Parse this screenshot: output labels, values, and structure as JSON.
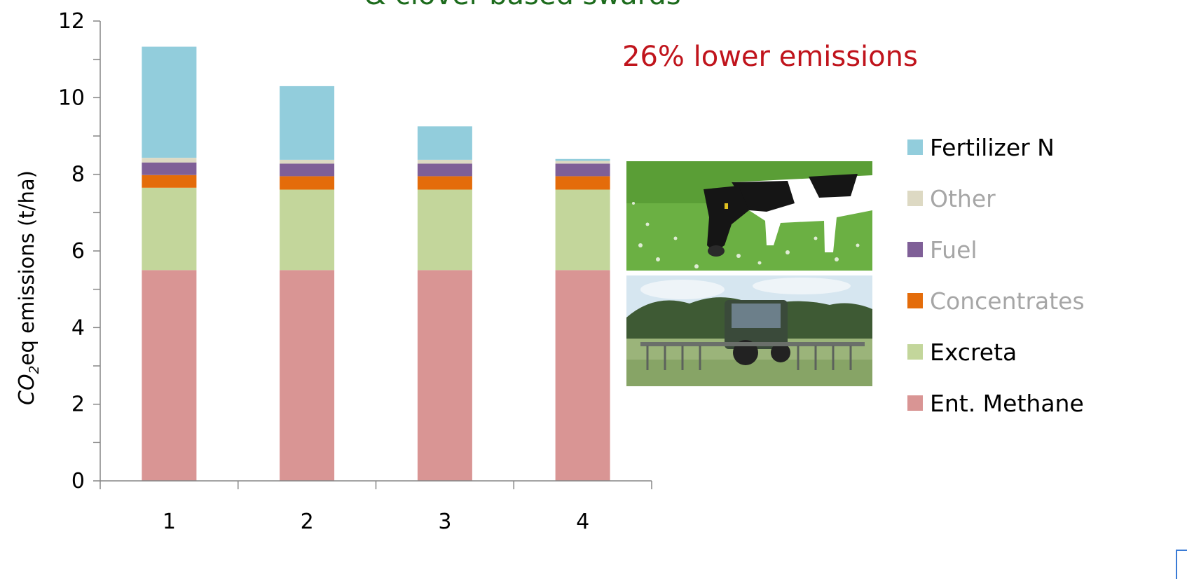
{
  "chart_data": {
    "type": "bar",
    "stacked": true,
    "title": "& clover-based swards",
    "annotation": "26% lower emissions",
    "ylabel_parts": [
      "CO",
      "2",
      "eq emissions (t/ha)"
    ],
    "xlabel": "",
    "categories": [
      "1",
      "2",
      "3",
      "4"
    ],
    "ylim": [
      0,
      12
    ],
    "yticks": [
      0,
      2,
      4,
      6,
      8,
      10,
      12
    ],
    "grid": false,
    "legend_position": "right",
    "series": [
      {
        "name": "Ent. Methane",
        "color": "#d99594",
        "values": [
          5.5,
          5.5,
          5.5,
          5.5
        ]
      },
      {
        "name": "Excreta",
        "color": "#c3d69b",
        "values": [
          2.15,
          2.1,
          2.1,
          2.1
        ]
      },
      {
        "name": "Concentrates",
        "color": "#e46c0a",
        "values": [
          0.33,
          0.35,
          0.35,
          0.35
        ]
      },
      {
        "name": "Fuel",
        "color": "#7f5f97",
        "values": [
          0.33,
          0.33,
          0.33,
          0.33
        ]
      },
      {
        "name": "Other",
        "color": "#ddd9c3",
        "values": [
          0.12,
          0.1,
          0.1,
          0.07
        ]
      },
      {
        "name": "Fertilizer N",
        "color": "#92cddc",
        "values": [
          2.9,
          1.92,
          0.87,
          0.05
        ]
      }
    ],
    "legend_order": [
      "Fertilizer N",
      "Other",
      "Fuel",
      "Concentrates",
      "Excreta",
      "Ent. Methane"
    ],
    "legend_text_colors": {
      "Fertilizer N": "#000000",
      "Other": "#a6a6a6",
      "Fuel": "#a6a6a6",
      "Concentrates": "#a6a6a6",
      "Excreta": "#000000",
      "Ent. Methane": "#000000"
    }
  },
  "images": [
    {
      "name": "cow-grazing-photo",
      "description": "black and white cow grazing on clover pasture"
    },
    {
      "name": "tractor-slurry-spreader-photo",
      "description": "tractor with trailing-shoe slurry spreader in field"
    }
  ]
}
